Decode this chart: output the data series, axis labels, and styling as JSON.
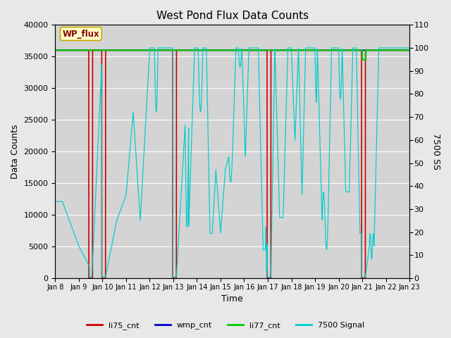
{
  "title": "West Pond Flux Data Counts",
  "xlabel": "Time",
  "ylabel_left": "Data Counts",
  "ylabel_right": "7500 SS",
  "ylim_left": [
    0,
    40000
  ],
  "ylim_right": [
    0,
    110
  ],
  "fig_facecolor": "#e8e8e8",
  "ax_facecolor": "#d4d4d4",
  "grid_color": "#ffffff",
  "xtick_labels": [
    "Jan 8",
    "Jan 9",
    "Jan 10",
    "Jan 11",
    "Jan 12",
    "Jan 13",
    "Jan 14",
    "Jan 15",
    "Jan 16",
    "Jan 17",
    "Jan 18",
    "Jan 19",
    "Jan 20",
    "Jan 21",
    "Jan 22",
    "Jan 23"
  ],
  "li75_color": "#cc0000",
  "wmp_color": "#0000cc",
  "li77_color": "#00cc00",
  "cyan_color": "#00cccc",
  "wp_flux_text_color": "#8B0000",
  "wp_flux_box_facecolor": "#ffffcc",
  "wp_flux_box_edgecolor": "#ccaa00"
}
